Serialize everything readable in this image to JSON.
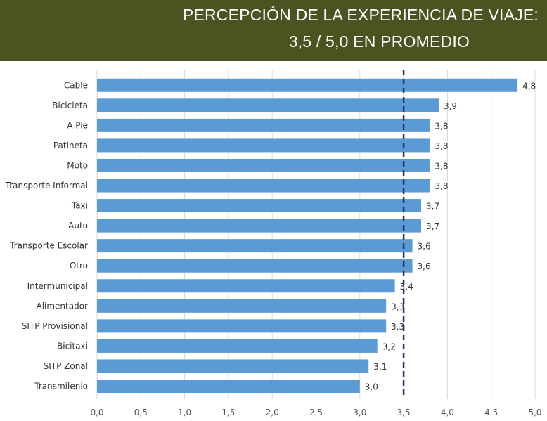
{
  "header": {
    "title_line1": "PERCEPCIÓN DE LA EXPERIENCIA DE VIAJE:",
    "title_line2": "3,5 / 5,0 EN PROMEDIO"
  },
  "colors": {
    "header_bg": "#4b5320",
    "bar": "#5b9bd5",
    "reference_line": "#1f3864"
  },
  "chart_data": {
    "type": "bar",
    "orientation": "horizontal",
    "categories": [
      "Cable",
      "Bicicleta",
      "A Pie",
      "Patineta",
      "Moto",
      "Transporte Informal",
      "Taxi",
      "Auto",
      "Transporte Escolar",
      "Otro",
      "Intermunicipal",
      "Alimentador",
      "SITP Provisional",
      "Bicitaxi",
      "SITP Zonal",
      "Transmilenio"
    ],
    "values": [
      4.8,
      3.9,
      3.8,
      3.8,
      3.8,
      3.8,
      3.7,
      3.7,
      3.6,
      3.6,
      3.4,
      3.3,
      3.3,
      3.2,
      3.1,
      3.0
    ],
    "value_labels": [
      "4,8",
      "3,9",
      "3,8",
      "3,8",
      "3,8",
      "3,8",
      "3,7",
      "3,7",
      "3,6",
      "3,6",
      "3,4",
      "3,3",
      "3,3",
      "3,2",
      "3,1",
      "3,0"
    ],
    "xlim": [
      0,
      5
    ],
    "xticks": [
      0,
      0.5,
      1,
      1.5,
      2,
      2.5,
      3,
      3.5,
      4,
      4.5,
      5
    ],
    "xtick_labels": [
      "0,0",
      "0,5",
      "1,0",
      "1,5",
      "2,0",
      "2,5",
      "3,0",
      "3,5",
      "4,0",
      "4,5",
      "5,0"
    ],
    "reference_line": 3.5,
    "grid": true,
    "xlabel": "",
    "ylabel": ""
  }
}
